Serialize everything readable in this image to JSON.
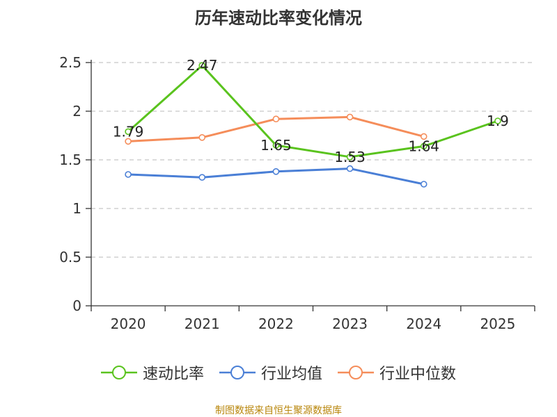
{
  "chart_data": {
    "type": "line",
    "title": "历年速动比率变化情况",
    "categories": [
      "2020",
      "2021",
      "2022",
      "2023",
      "2024",
      "2025"
    ],
    "y_ticks": [
      "0",
      "0.5",
      "1",
      "1.5",
      "2",
      "2.5"
    ],
    "ylim": [
      0,
      2.5
    ],
    "series": [
      {
        "name": "速动比率",
        "color": "#5ac31e",
        "values": [
          1.79,
          2.47,
          1.65,
          1.53,
          1.64,
          1.9
        ],
        "labels": [
          "1.79",
          "2.47",
          "1.65",
          "1.53",
          "1.64",
          "1.9"
        ]
      },
      {
        "name": "行业均值",
        "color": "#4a7fd6",
        "values": [
          1.35,
          1.32,
          1.38,
          1.41,
          1.25,
          null
        ]
      },
      {
        "name": "行业中位数",
        "color": "#f58d5a",
        "values": [
          1.69,
          1.73,
          1.92,
          1.94,
          1.74,
          null
        ]
      }
    ]
  },
  "source": "制图数据来自恒生聚源数据库"
}
